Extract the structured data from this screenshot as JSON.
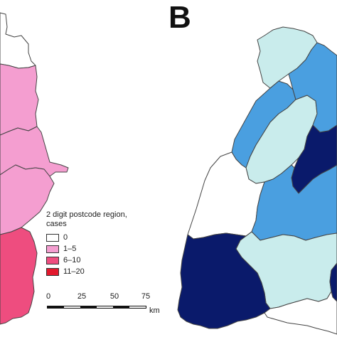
{
  "panel_label": "B",
  "legend": {
    "title": "2 digit postcode region, cases",
    "items": [
      {
        "label": "0",
        "color": "#ffffff"
      },
      {
        "label": "1–5",
        "color": "#f49ed0"
      },
      {
        "label": "6–10",
        "color": "#ee4d7f"
      },
      {
        "label": "11–20",
        "color": "#e2182d"
      }
    ]
  },
  "scale": {
    "ticks": [
      "0",
      "25",
      "50",
      "75"
    ],
    "unit": "km"
  },
  "map_colors": {
    "outline": "#444444",
    "white": "#ffffff",
    "pink_light": "#f49ed0",
    "pink_medium": "#ee4d7f",
    "red": "#e2182d",
    "navy": "#0a1a6b",
    "blue_medium": "#4a9fe0",
    "blue_pale": "#c9ecec"
  }
}
